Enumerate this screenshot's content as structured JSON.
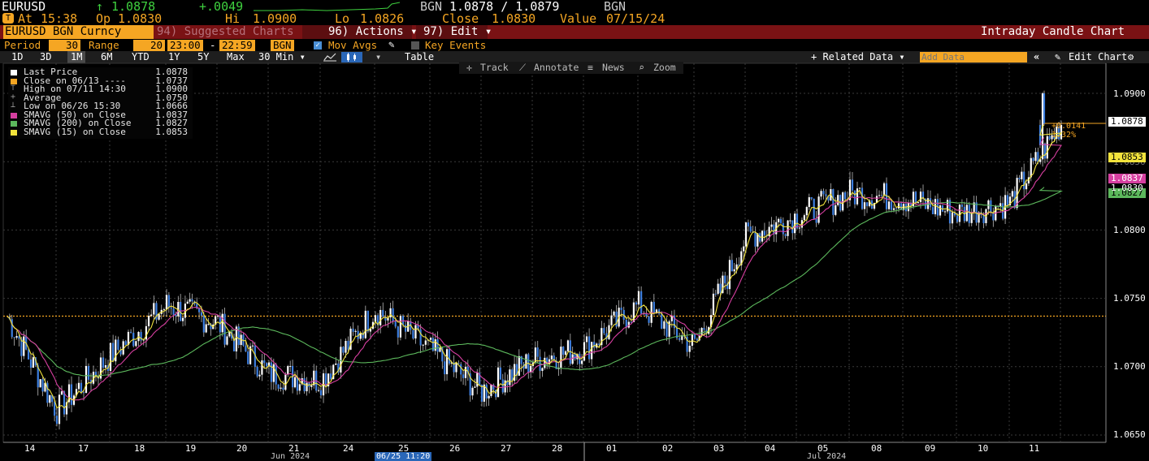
{
  "header": {
    "ticker": "EURUSD",
    "arrow": "↑",
    "price": "1.0878",
    "change": "+.0049",
    "bgn_label": "BGN",
    "bid_ask": "1.0878 / 1.0879",
    "bgn_label2": "BGN",
    "at_label": "At",
    "time": "15:38",
    "op_label": "Op",
    "open": "1.0830",
    "hi_label": "Hi",
    "high": "1.0900",
    "lo_label": "Lo",
    "low": "1.0826",
    "close_label": "Close",
    "close": "1.0830",
    "value_label": "Value",
    "date": "07/15/24"
  },
  "actionbar": {
    "security": "EURUSD BGN Curncy",
    "suggested": "94) Suggested Charts",
    "actions": "96) Actions ▾",
    "edit": "97) Edit ▾",
    "chart_title": "Intraday Candle Chart"
  },
  "periodbar": {
    "period_label": "Period",
    "period_value": "30",
    "range_label": "Range",
    "range_value": "20",
    "time_from": "23:00",
    "time_to": "22:59",
    "source": "BGN",
    "mov_avgs": "Mov Avgs",
    "key_events": "Key Events"
  },
  "tabs": {
    "items": [
      "1D",
      "3D",
      "1M",
      "6M",
      "YTD",
      "1Y",
      "5Y",
      "Max",
      "30 Min ▾"
    ],
    "selected": "1M",
    "table": "Table",
    "related": "+ Related Data ▾",
    "add_data_placeholder": "Add Data",
    "collapse": "«",
    "edit_chart": "Edit Chart",
    "settings_icon": "gear-icon"
  },
  "toolbar": {
    "track": "Track",
    "annotate": "Annotate",
    "news": "News",
    "zoom": "Zoom"
  },
  "legend": [
    {
      "label": "Last Price",
      "value": "1.0878",
      "color": "#ffffff"
    },
    {
      "label": "Close on 06/13 ----",
      "value": "1.0737",
      "color": "#f5a623"
    },
    {
      "label": "High on 07/11 14:30",
      "value": "1.0900",
      "color": "#888888"
    },
    {
      "label": "Average",
      "value": "1.0750",
      "color": "#888888"
    },
    {
      "label": "Low on 06/26 15:30",
      "value": "1.0666",
      "color": "#888888"
    },
    {
      "label": "SMAVG (50)  on Close",
      "value": "1.0837",
      "color": "#d63fa0"
    },
    {
      "label": "SMAVG (200)  on Close",
      "value": "1.0827",
      "color": "#5cb85c"
    },
    {
      "label": "SMAVG (15)  on Close",
      "value": "1.0853",
      "color": "#f2e33c"
    }
  ],
  "annotations": {
    "change_abs": "+0.0141",
    "change_pct": "1.32%",
    "last_tag": "1.0878",
    "sma15_tag": "1.0853",
    "sma50_tag": "1.0837",
    "close_tag": "1.0830",
    "sma200_tag": "1.0827",
    "cursor_date": "06/25 11:20"
  },
  "chart_data": {
    "type": "candlestick",
    "y_ticks": [
      "1.0900",
      "1.0850",
      "1.0800",
      "1.0750",
      "1.0700",
      "1.0650"
    ],
    "ylim": [
      1.0645,
      1.0915
    ],
    "x_days": [
      "14",
      "17",
      "18",
      "19",
      "20",
      "21",
      "24",
      "25",
      "26",
      "27",
      "28",
      "01",
      "02",
      "03",
      "04",
      "05",
      "08",
      "09",
      "10",
      "11"
    ],
    "month_labels": [
      "Jun 2024",
      "Jul 2024"
    ],
    "reference_close": 1.0737,
    "day_closes": [
      1.0668,
      1.0708,
      1.0745,
      1.0732,
      1.0695,
      1.069,
      1.0742,
      1.0712,
      1.0682,
      1.0705,
      1.0713,
      1.0745,
      1.0715,
      1.0795,
      1.081,
      1.0827,
      1.0823,
      1.0812,
      1.082,
      1.0878
    ],
    "series": [
      {
        "name": "SMAVG (15)",
        "color": "#f2e33c"
      },
      {
        "name": "SMAVG (50)",
        "color": "#d63fa0"
      },
      {
        "name": "SMAVG (200)",
        "color": "#5cb85c"
      }
    ],
    "last": 1.0878,
    "high": 1.09,
    "low": 1.0666
  }
}
